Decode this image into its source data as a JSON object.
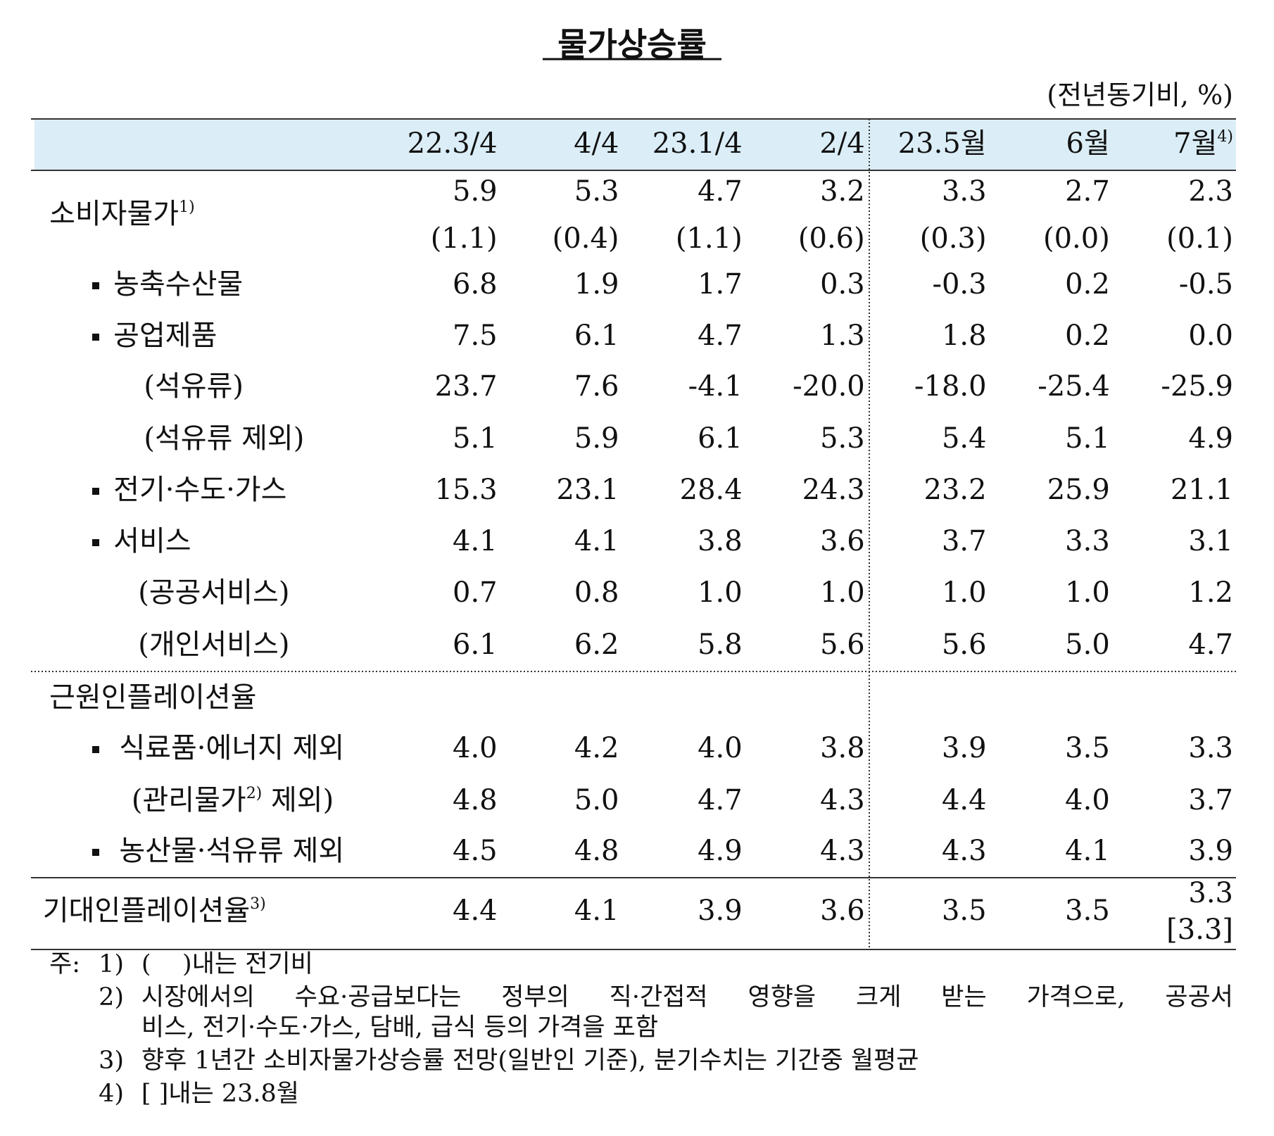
{
  "header": {
    "title": "물가상승률",
    "unit": "(전년동기비, %)"
  },
  "table": {
    "columns": [
      {
        "text": "22.3/4"
      },
      {
        "text": "4/4"
      },
      {
        "text": "23.1/4"
      },
      {
        "text": "2/4"
      },
      {
        "text": "23.5월"
      },
      {
        "text": "6월"
      },
      {
        "text": "7월",
        "sup": "4)"
      }
    ],
    "rows": [
      {
        "label": "소비자물가",
        "sup": "1)",
        "values": [
          "5.9",
          "5.3",
          "4.7",
          "3.2",
          "3.3",
          "2.7",
          "2.3"
        ],
        "sub_values": [
          "(1.1)",
          "(0.4)",
          "(1.1)",
          "(0.6)",
          "(0.3)",
          "(0.0)",
          "(0.1)"
        ]
      },
      {
        "label": "농축수산물",
        "values": [
          "6.8",
          "1.9",
          "1.7",
          "0.3",
          "-0.3",
          "0.2",
          "-0.5"
        ]
      },
      {
        "label": "공업제품",
        "values": [
          "7.5",
          "6.1",
          "4.7",
          "1.3",
          "1.8",
          "0.2",
          "0.0"
        ]
      },
      {
        "label": "(석유류)",
        "values": [
          "23.7",
          "7.6",
          "-4.1",
          "-20.0",
          "-18.0",
          "-25.4",
          "-25.9"
        ]
      },
      {
        "label": "(석유류 제외)",
        "values": [
          "5.1",
          "5.9",
          "6.1",
          "5.3",
          "5.4",
          "5.1",
          "4.9"
        ]
      },
      {
        "label": "전기·수도·가스",
        "values": [
          "15.3",
          "23.1",
          "28.4",
          "24.3",
          "23.2",
          "25.9",
          "21.1"
        ]
      },
      {
        "label": "서비스",
        "values": [
          "4.1",
          "4.1",
          "3.8",
          "3.6",
          "3.7",
          "3.3",
          "3.1"
        ]
      },
      {
        "label": "(공공서비스)",
        "values": [
          "0.7",
          "0.8",
          "1.0",
          "1.0",
          "1.0",
          "1.0",
          "1.2"
        ]
      },
      {
        "label": "(개인서비스)",
        "values": [
          "6.1",
          "6.2",
          "5.8",
          "5.6",
          "5.6",
          "5.0",
          "4.7"
        ]
      },
      {
        "label": "근원인플레이션율"
      },
      {
        "label": "식료품·에너지 제외",
        "values": [
          "4.0",
          "4.2",
          "4.0",
          "3.8",
          "3.9",
          "3.5",
          "3.3"
        ]
      },
      {
        "label": "(관리물가",
        "sup": "2)",
        "label_post": " 제외)",
        "values": [
          "4.8",
          "5.0",
          "4.7",
          "4.3",
          "4.4",
          "4.0",
          "3.7"
        ]
      },
      {
        "label": "농산물·석유류 제외",
        "values": [
          "4.5",
          "4.8",
          "4.9",
          "4.3",
          "4.3",
          "4.1",
          "3.9"
        ]
      },
      {
        "label": "기대인플레이션율",
        "sup": "3)",
        "values": [
          "4.4",
          "4.1",
          "3.9",
          "3.6",
          "3.5",
          "3.5",
          "3.3"
        ],
        "value_note": "[3.3]"
      }
    ]
  },
  "notes": {
    "prefix": "주:",
    "items": [
      {
        "num": "1)",
        "lines": [
          "(    )내는 전기비"
        ]
      },
      {
        "num": "2)",
        "lines": [
          "시장에서의 수요·공급보다는 정부의 직·간접적 영향을 크게 받는 가격으로, 공공서",
          "비스, 전기·수도·가스, 담배, 급식 등의 가격을 포함"
        ]
      },
      {
        "num": "3)",
        "lines": [
          "향후 1년간 소비자물가상승률 전망(일반인 기준), 분기수치는 기간중 월평균"
        ]
      },
      {
        "num": "4)",
        "lines": [
          "[ ]내는 23.8월"
        ]
      }
    ]
  }
}
